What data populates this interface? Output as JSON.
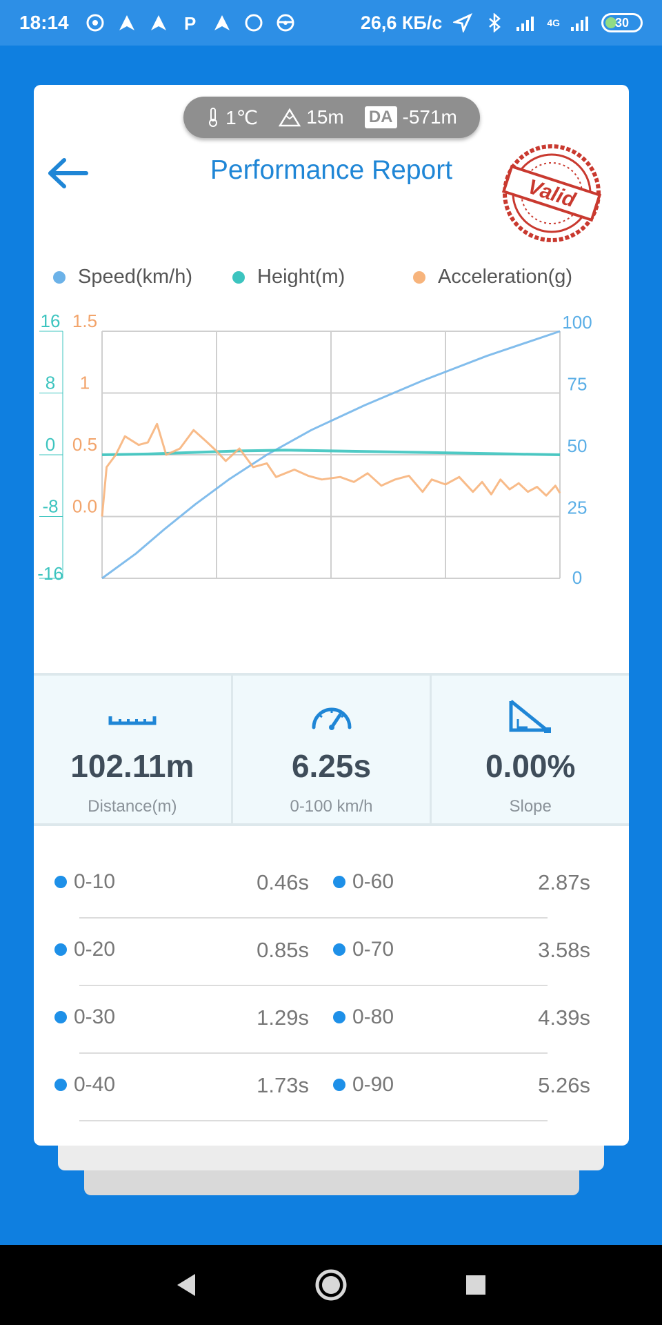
{
  "status_bar": {
    "time": "18:14",
    "net_speed": "26,6 КБ/с",
    "network_type": "4G",
    "battery": "30"
  },
  "environment": {
    "temperature": "1℃",
    "altitude": "15m",
    "da_label": "DA",
    "density_altitude": "-571m"
  },
  "header": {
    "title": "Performance Report",
    "stamp_text": "Valid"
  },
  "legend": [
    {
      "label": "Speed(km/h)",
      "color": "#6cb2e8"
    },
    {
      "label": "Height(m)",
      "color": "#3cc4bf"
    },
    {
      "label": "Acceleration(g)",
      "color": "#f7b47c"
    }
  ],
  "chart_data": {
    "type": "line",
    "axes": {
      "height_ticks": [
        "16",
        "8",
        "0",
        "-8",
        "-16"
      ],
      "accel_ticks": [
        "1.5",
        "1",
        "0.5",
        "0.0"
      ],
      "speed_ticks": [
        "100",
        "75",
        "50",
        "25",
        "0"
      ],
      "height_range": [
        -16,
        16
      ],
      "accel_range": [
        -0.5,
        1.5
      ],
      "speed_range": [
        0,
        100
      ]
    },
    "grid": true,
    "series": [
      {
        "name": "Speed(km/h)",
        "color": "#74b6ea",
        "values": [
          0,
          10,
          20,
          30,
          40,
          50,
          60,
          70,
          80,
          90,
          100
        ],
        "x_fraction": [
          0,
          0.074,
          0.137,
          0.204,
          0.277,
          0.36,
          0.457,
          0.573,
          0.7,
          0.84,
          1.0
        ]
      },
      {
        "name": "Height(m)",
        "color": "#3cc4bf",
        "values": [
          0,
          0.1,
          0.3,
          0.5,
          0.6,
          0.5,
          0.4,
          0.3,
          0.2,
          0.1,
          0
        ],
        "x_fraction": [
          0,
          0.1,
          0.2,
          0.3,
          0.4,
          0.5,
          0.6,
          0.7,
          0.8,
          0.9,
          1.0
        ]
      },
      {
        "name": "Acceleration(g)",
        "color": "#f7b47c",
        "values": [
          0.0,
          0.4,
          0.5,
          0.65,
          0.58,
          0.6,
          0.75,
          0.5,
          0.55,
          0.7,
          0.6,
          0.53,
          0.45,
          0.55,
          0.4,
          0.43,
          0.32,
          0.38,
          0.33,
          0.3,
          0.32,
          0.28,
          0.35,
          0.25,
          0.3,
          0.33,
          0.2,
          0.3,
          0.26,
          0.32,
          0.2,
          0.28,
          0.18,
          0.3,
          0.22,
          0.27,
          0.2,
          0.24,
          0.17,
          0.25,
          0.19
        ],
        "x_fraction": [
          0,
          0.01,
          0.03,
          0.05,
          0.08,
          0.1,
          0.12,
          0.14,
          0.17,
          0.2,
          0.23,
          0.25,
          0.27,
          0.3,
          0.33,
          0.36,
          0.38,
          0.42,
          0.45,
          0.48,
          0.52,
          0.55,
          0.58,
          0.61,
          0.64,
          0.67,
          0.7,
          0.72,
          0.75,
          0.78,
          0.81,
          0.83,
          0.85,
          0.87,
          0.89,
          0.91,
          0.93,
          0.95,
          0.97,
          0.99,
          1.0
        ]
      }
    ]
  },
  "stats": [
    {
      "icon": "ruler-icon",
      "value": "102.11m",
      "label": "Distance(m)"
    },
    {
      "icon": "speedometer-icon",
      "value": "6.25s",
      "label": "0-100 km/h"
    },
    {
      "icon": "slope-icon",
      "value": "0.00%",
      "label": "Slope"
    }
  ],
  "splits": [
    {
      "left_label": "0-10",
      "left_time": "0.46s",
      "right_label": "0-60",
      "right_time": "2.87s"
    },
    {
      "left_label": "0-20",
      "left_time": "0.85s",
      "right_label": "0-70",
      "right_time": "3.58s"
    },
    {
      "left_label": "0-30",
      "left_time": "1.29s",
      "right_label": "0-80",
      "right_time": "4.39s"
    },
    {
      "left_label": "0-40",
      "left_time": "1.73s",
      "right_label": "0-90",
      "right_time": "5.26s"
    }
  ],
  "colors": {
    "accent": "#1f86d6",
    "background": "#0f7fe0",
    "dot": "#1e90e8"
  }
}
